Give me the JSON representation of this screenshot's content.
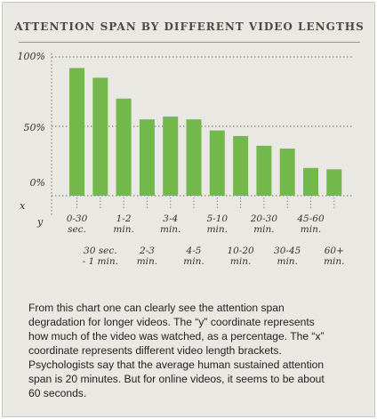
{
  "chart_data": {
    "type": "bar",
    "title": "ATTENTION SPAN BY DIFFERENT VIDEO LENGTHS",
    "categories": [
      "0-30\nsec.",
      "30 sec.\n- 1 min.",
      "1-2\nmin.",
      "2-3\nmin.",
      "3-4\nmin.",
      "4-5\nmin.",
      "5-10\nmin.",
      "10-20\nmin.",
      "20-30\nmin.",
      "30-45\nmin.",
      "45-60\nmin.",
      "60+\nmin."
    ],
    "values": [
      92,
      85,
      70,
      55,
      57,
      55,
      47,
      43,
      36,
      34,
      20,
      19
    ],
    "y_tick_labels": [
      "100%",
      "50%",
      "0%"
    ],
    "x_axis_letter": "x",
    "y_axis_letter": "y",
    "colors": {
      "bar": "#72b84a",
      "grid": "#8a877f"
    }
  },
  "text": {
    "paragraph1": "From this chart one can clearly see the attention span\ndegradation for longer videos. The “y” coordinate represents\nhow much of the video was watched, as a percentage. The “x”\ncoordinate represents different video length brackets.",
    "paragraph2": "    Psychologists say that the average human sustained attention\nspan is 20 minutes. But for online videos, it seems to be about\n60 seconds."
  }
}
